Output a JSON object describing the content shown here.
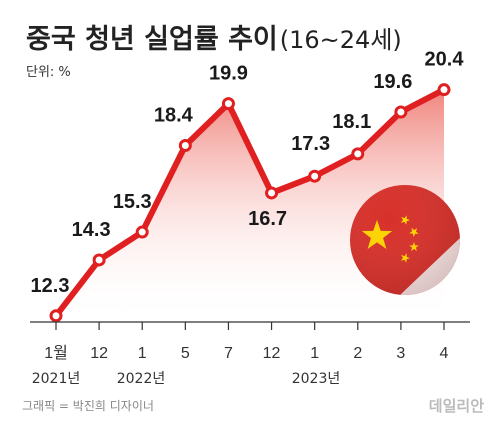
{
  "header": {
    "title": "중국 청년 실업률 추이",
    "title_range": "(16~24세)",
    "unit": "단위: %"
  },
  "chart_data": {
    "type": "area",
    "categories": [
      "1월",
      "12",
      "1",
      "5",
      "7",
      "12",
      "1",
      "2",
      "3",
      "4"
    ],
    "values": [
      12.3,
      14.3,
      15.3,
      18.4,
      19.9,
      16.7,
      17.3,
      18.1,
      19.6,
      20.4
    ],
    "year_labels": [
      "2021년",
      "2022년",
      "2023년"
    ],
    "ylim": [
      10,
      22
    ],
    "line_color": "#e02020",
    "fill_color": "#f4a09a",
    "grid": false,
    "legend": "none"
  },
  "decor": {
    "flag_icon": "china-flag-circle",
    "flag_red": "#d8302a",
    "flag_yellow": "#ffd400"
  },
  "footer": {
    "credit": "그래픽 = 박진희 디자이너",
    "brand": "데일리안"
  }
}
